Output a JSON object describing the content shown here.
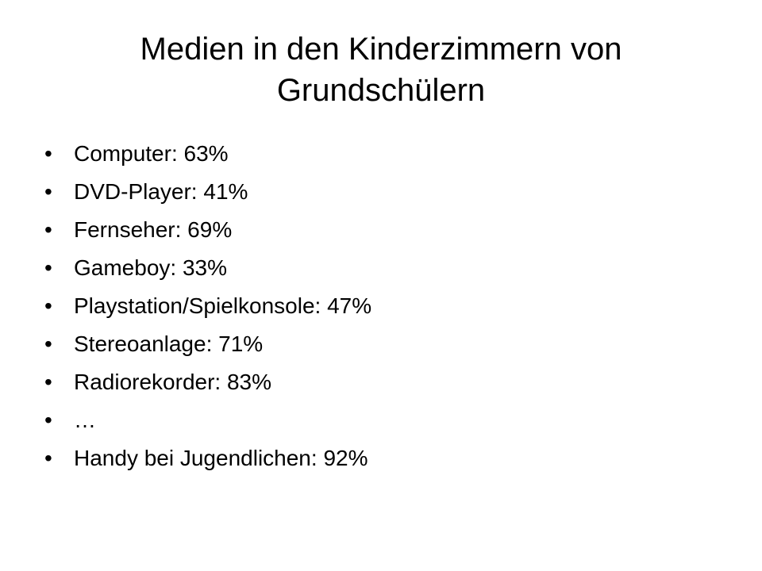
{
  "slide": {
    "title": "Medien in den Kinderzimmern von Grundschülern",
    "bullet_glyph": "•",
    "items": [
      {
        "text": "Computer: 63%"
      },
      {
        "text": "DVD-Player: 41%"
      },
      {
        "text": "Fernseher: 69%"
      },
      {
        "text": "Gameboy: 33%"
      },
      {
        "text": "Playstation/Spielkonsole: 47%"
      },
      {
        "text": "Stereoanlage: 71%"
      },
      {
        "text": "Radiorekorder: 83%"
      },
      {
        "text": "…"
      },
      {
        "text": "Handy bei Jugendlichen: 92%"
      }
    ]
  }
}
